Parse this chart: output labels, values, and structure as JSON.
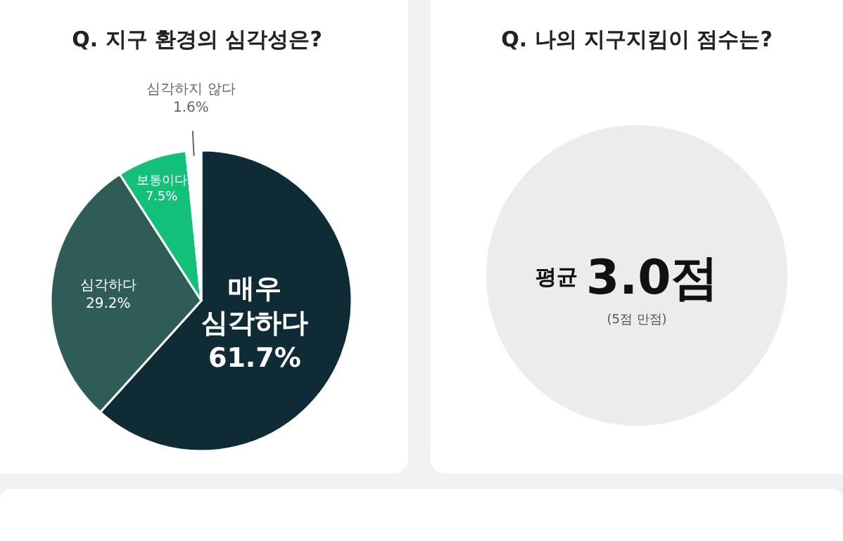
{
  "chart_data": [
    {
      "type": "pie",
      "title": "Q. 지구 환경의 심각성은?",
      "categories": [
        "매우 심각하다",
        "심각하다",
        "보통이다",
        "심각하지 않다"
      ],
      "values": [
        61.7,
        29.2,
        7.5,
        1.6
      ],
      "value_labels": [
        "61.7%",
        "29.2%",
        "7.5%",
        "1.6%"
      ],
      "colors": [
        "#0f2b36",
        "#2f5c56",
        "#13c07a",
        "#ffffff"
      ]
    },
    {
      "type": "other",
      "title": "Q. 나의 지구지킴이 점수는?",
      "annotations": [
        "평균",
        "3.0점",
        "(5점 만점)"
      ]
    }
  ]
}
